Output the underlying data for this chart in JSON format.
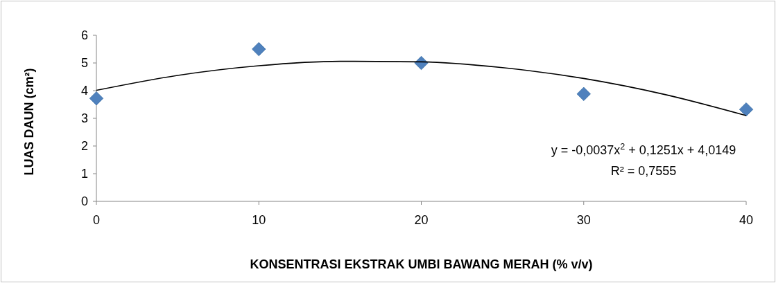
{
  "chart_data": {
    "type": "scatter",
    "xlabel": "KONSENTRASI EKSTRAK UMBI BAWANG MERAH (% v/v)",
    "ylabel": "LUAS DAUN (cm²)",
    "xlim": [
      0,
      40
    ],
    "xticks": [
      0,
      10,
      20,
      30,
      40
    ],
    "ylim": [
      0,
      6
    ],
    "yticks": [
      0,
      1,
      2,
      3,
      4,
      5,
      6
    ],
    "grid": false,
    "series": [
      {
        "type": "scatter",
        "color": "#4f81bd",
        "marker": "diamond",
        "x": [
          0,
          10,
          20,
          30,
          40
        ],
        "values": [
          3.72,
          5.5,
          5.0,
          3.88,
          3.32
        ]
      },
      {
        "type": "line",
        "color": "#000000",
        "marker": "none",
        "line_style": "solid",
        "x": [
          0,
          5,
          10,
          15,
          20,
          25,
          30,
          35,
          40
        ],
        "values": [
          4.01,
          4.55,
          4.9,
          5.06,
          5.04,
          4.83,
          4.44,
          3.86,
          3.1
        ]
      }
    ],
    "annotations": [
      "y = -0,0037x$^{2}$ + 0,1251x + 4,0149",
      "R² = 0,7555"
    ]
  }
}
